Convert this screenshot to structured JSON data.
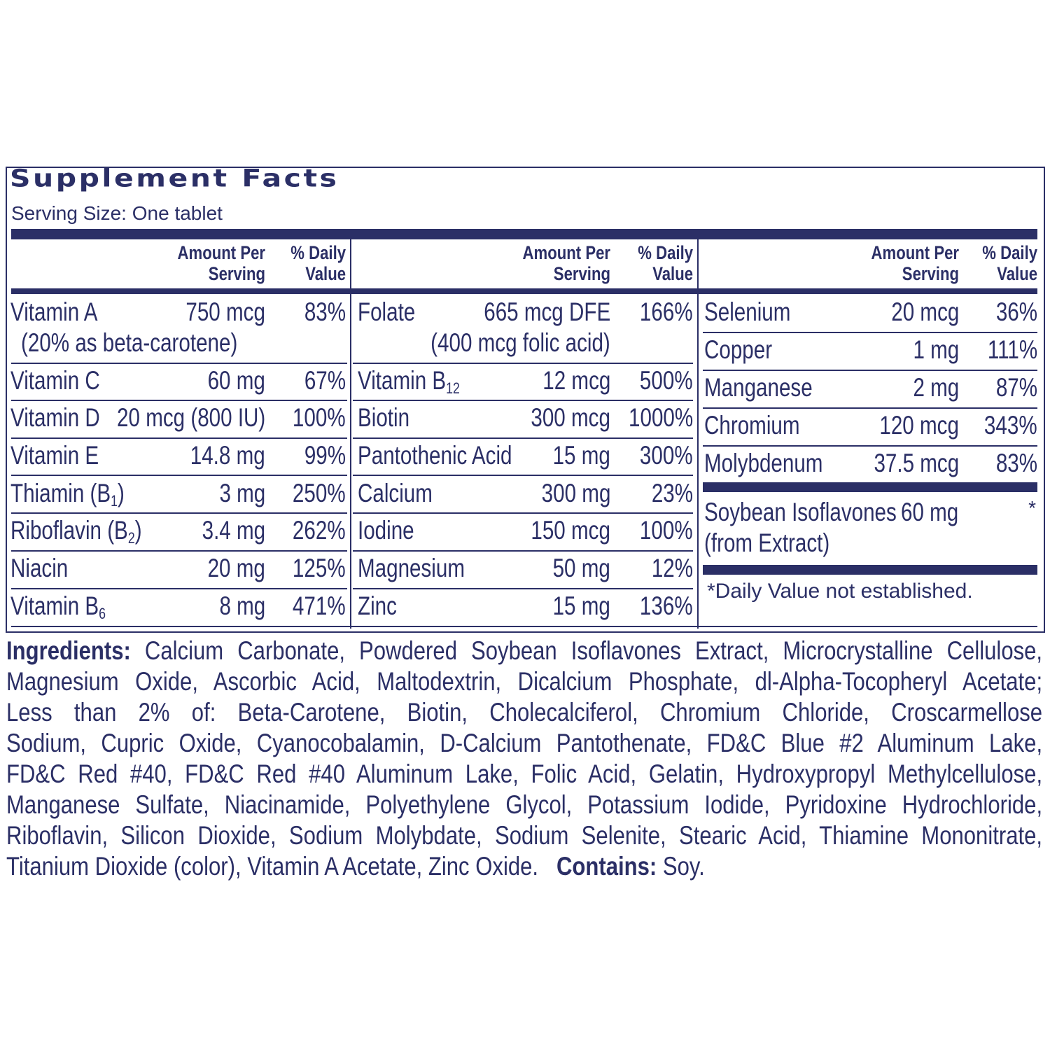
{
  "title": "Supplement Facts",
  "serving_size": "Serving Size: One tablet",
  "headers": {
    "amount_line1": "Amount Per",
    "amount_line2": "Serving",
    "dv_line1": "% Daily",
    "dv_line2": "Value"
  },
  "col1": [
    {
      "name": "Vitamin A",
      "amount": "750 mcg",
      "dv": "83%",
      "note": "(20% as beta-carotene)"
    },
    {
      "name": "Vitamin C",
      "amount": "60 mg",
      "dv": "67%"
    },
    {
      "name": "Vitamin D",
      "amount": "20 mcg (800 IU)",
      "dv": "100%"
    },
    {
      "name": "Vitamin E",
      "amount": "14.8 mg",
      "dv": "99%"
    },
    {
      "name": "Thiamin (B1)",
      "amount": "3 mg",
      "dv": "250%"
    },
    {
      "name": "Riboflavin (B2)",
      "amount": "3.4 mg",
      "dv": "262%"
    },
    {
      "name": "Niacin",
      "amount": "20 mg",
      "dv": "125%"
    },
    {
      "name": "Vitamin B6",
      "amount": "8 mg",
      "dv": "471%"
    }
  ],
  "col2": [
    {
      "name": "Folate",
      "amount": "665 mcg DFE",
      "dv": "166%",
      "note": "(400 mcg folic acid)"
    },
    {
      "name": "Vitamin B12",
      "amount": "12 mcg",
      "dv": "500%"
    },
    {
      "name": "Biotin",
      "amount": "300 mcg",
      "dv": "1000%"
    },
    {
      "name": "Pantothenic Acid",
      "amount": "15 mg",
      "dv": "300%"
    },
    {
      "name": "Calcium",
      "amount": "300 mg",
      "dv": "23%"
    },
    {
      "name": "Iodine",
      "amount": "150 mcg",
      "dv": "100%"
    },
    {
      "name": "Magnesium",
      "amount": "50 mg",
      "dv": "12%"
    },
    {
      "name": "Zinc",
      "amount": "15 mg",
      "dv": "136%"
    }
  ],
  "col3": [
    {
      "name": "Selenium",
      "amount": "20 mcg",
      "dv": "36%"
    },
    {
      "name": "Copper",
      "amount": "1 mg",
      "dv": "111%"
    },
    {
      "name": "Manganese",
      "amount": "2 mg",
      "dv": "87%"
    },
    {
      "name": "Chromium",
      "amount": "120 mcg",
      "dv": "343%"
    },
    {
      "name": "Molybdenum",
      "amount": "37.5 mcg",
      "dv": "83%"
    }
  ],
  "soy": {
    "name": "Soybean Isoflavones",
    "name2": "(from Extract)",
    "amount": "60 mg",
    "dv": "*"
  },
  "footnote": "*Daily Value not established.",
  "ingredients": {
    "label": "Ingredients:",
    "lines": [
      "Calcium Carbonate, Powdered Soybean Isoflavones Extract, Microcrystalline Cellulose,",
      "Magnesium Oxide, Ascorbic Acid, Maltodextrin, Dicalcium Phosphate, dl-Alpha-Tocopheryl Acetate;",
      "Less than 2% of: Beta-Carotene, Biotin, Cholecalciferol, Chromium Chloride, Croscarmellose",
      "Sodium, Cupric Oxide, Cyanocobalamin, D-Calcium Pantothenate, FD&C Blue #2 Aluminum Lake,",
      "FD&C Red #40, FD&C Red #40 Aluminum Lake, Folic Acid, Gelatin, Hydroxypropyl Methylcellulose,",
      "Manganese Sulfate, Niacinamide, Polyethylene Glycol, Potassium Iodide, Pyridoxine Hydrochloride,",
      "Riboflavin, Silicon Dioxide, Sodium Molybdate, Sodium Selenite, Stearic Acid, Thiamine Mononitrate,",
      "Titanium Dioxide (color), Vitamin A Acetate, Zinc Oxide."
    ],
    "contains_label": "Contains:",
    "contains_value": "Soy."
  },
  "colors": {
    "ink": "#2b2f66",
    "background": "#ffffff"
  }
}
